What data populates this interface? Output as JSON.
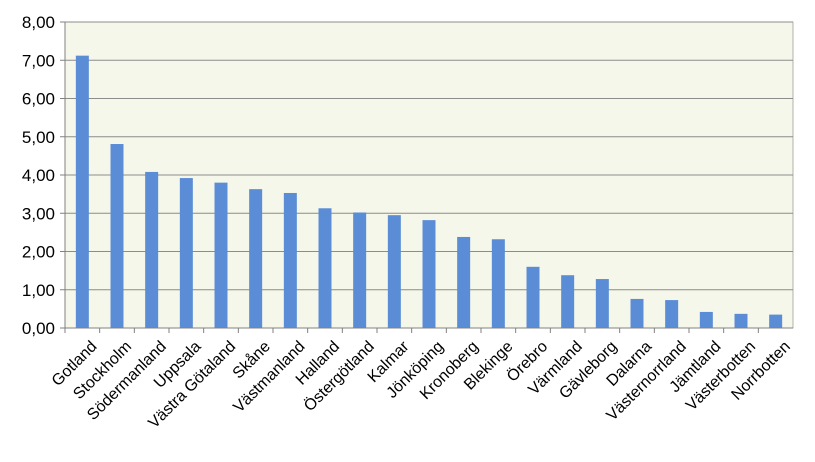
{
  "chart_data": {
    "type": "bar",
    "title": "",
    "xlabel": "",
    "ylabel": "",
    "ylim": [
      0,
      8
    ],
    "y_ticks": [
      "0,00",
      "1,00",
      "2,00",
      "3,00",
      "4,00",
      "5,00",
      "6,00",
      "7,00",
      "8,00"
    ],
    "grid": true,
    "legend": "none",
    "categories": [
      "Gotland",
      "Stockholm",
      "Södermanland",
      "Uppsala",
      "Västra Götaland",
      "Skåne",
      "Västmanland",
      "Halland",
      "Östergötland",
      "Kalmar",
      "Jönköping",
      "Kronoberg",
      "Blekinge",
      "Örebro",
      "Värmland",
      "Gävleborg",
      "Dalarna",
      "Västernorrland",
      "Jämtland",
      "Västerbotten",
      "Norrbotten"
    ],
    "values": [
      7.12,
      4.81,
      4.08,
      3.92,
      3.8,
      3.63,
      3.53,
      3.13,
      3.02,
      2.95,
      2.82,
      2.38,
      2.32,
      1.6,
      1.38,
      1.28,
      0.76,
      0.73,
      0.42,
      0.37,
      0.35
    ],
    "colors": {
      "bar": "#5B8DD6",
      "plot_background": "#F4F7EA",
      "grid": "#8C8C8C",
      "axis": "#808080"
    }
  }
}
